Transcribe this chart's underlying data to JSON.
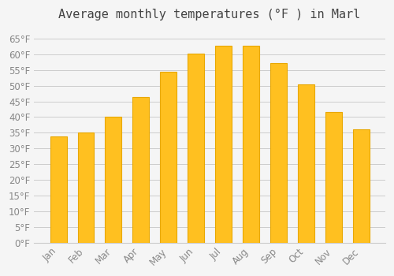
{
  "title": "Average monthly temperatures (°F ) in Marl",
  "months": [
    "Jan",
    "Feb",
    "Mar",
    "Apr",
    "May",
    "Jun",
    "Jul",
    "Aug",
    "Sep",
    "Oct",
    "Nov",
    "Dec"
  ],
  "values": [
    33.8,
    35.1,
    40.1,
    46.4,
    54.5,
    60.1,
    62.8,
    62.8,
    57.2,
    50.5,
    41.7,
    36.0
  ],
  "bar_color": "#FFC020",
  "bar_edge_color": "#E8A800",
  "background_color": "#F5F5F5",
  "grid_color": "#CCCCCC",
  "text_color": "#888888",
  "ylim": [
    0,
    68
  ],
  "yticks": [
    0,
    5,
    10,
    15,
    20,
    25,
    30,
    35,
    40,
    45,
    50,
    55,
    60,
    65
  ],
  "title_fontsize": 11,
  "tick_fontsize": 8.5
}
